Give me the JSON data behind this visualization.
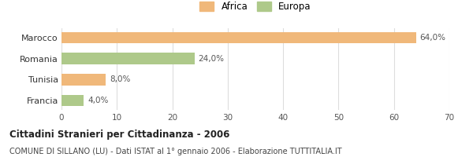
{
  "categories": [
    "Francia",
    "Tunisia",
    "Romania",
    "Marocco"
  ],
  "values": [
    4.0,
    8.0,
    24.0,
    64.0
  ],
  "colors": [
    "#aec98a",
    "#f0b87a",
    "#aec98a",
    "#f0b87a"
  ],
  "bar_labels": [
    "4,0%",
    "8,0%",
    "24,0%",
    "64,0%"
  ],
  "xlim": [
    0,
    70
  ],
  "xticks": [
    0,
    10,
    20,
    30,
    40,
    50,
    60,
    70
  ],
  "legend_labels": [
    "Africa",
    "Europa"
  ],
  "legend_colors": [
    "#f0b87a",
    "#aec98a"
  ],
  "title": "Cittadini Stranieri per Cittadinanza - 2006",
  "subtitle": "COMUNE DI SILLANO (LU) - Dati ISTAT al 1° gennaio 2006 - Elaborazione TUTTITALIA.IT",
  "background_color": "#ffffff",
  "grid_color": "#dddddd"
}
